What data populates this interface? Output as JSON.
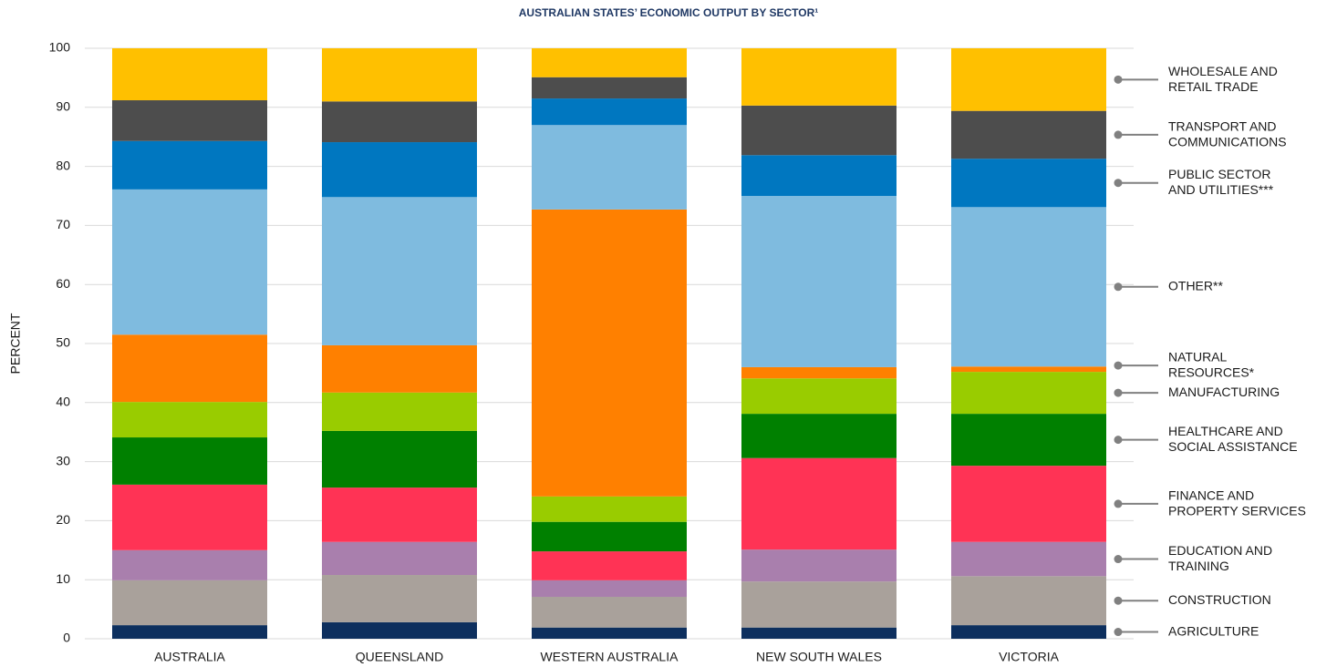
{
  "chart_data": {
    "type": "stacked_bar",
    "title": "AUSTRALIAN STATES’ ECONOMIC OUTPUT BY SECTOR¹",
    "y_label": "PERCENT",
    "categories": [
      "AUSTRALIA",
      "QUEENSLAND",
      "WESTERN AUSTRALIA",
      "NEW SOUTH WALES",
      "VICTORIA"
    ],
    "ylim": [
      0,
      100
    ],
    "yticks": [
      0,
      10,
      20,
      30,
      40,
      50,
      60,
      70,
      80,
      90,
      100
    ],
    "grid": true,
    "legend": "right",
    "series": [
      {
        "name": "AGRICULTURE",
        "color": "#0d2f5e",
        "values": [
          2.3,
          2.8,
          1.9,
          1.9,
          2.3
        ]
      },
      {
        "name": "CONSTRUCTION",
        "color": "#a9a19b",
        "values": [
          7.6,
          8.0,
          5.2,
          7.8,
          8.3
        ]
      },
      {
        "name": "EDUCATION AND\nTRAINING",
        "color": "#a97fad",
        "values": [
          5.1,
          5.6,
          2.8,
          5.4,
          5.8
        ]
      },
      {
        "name": "FINANCE AND\nPROPERTY SERVICES",
        "color": "#ff3355",
        "values": [
          11.1,
          9.2,
          4.9,
          15.5,
          12.9
        ]
      },
      {
        "name": "HEALTHCARE AND\nSOCIAL ASSISTANCE",
        "color": "#008000",
        "values": [
          8.0,
          9.6,
          5.0,
          7.5,
          8.8
        ]
      },
      {
        "name": "MANUFACTURING",
        "color": "#99cc00",
        "values": [
          6.0,
          6.5,
          4.3,
          6.0,
          7.1
        ]
      },
      {
        "name": "NATURAL\nRESOURCES*",
        "color": "#ff8000",
        "values": [
          11.4,
          8.0,
          48.6,
          1.9,
          0.9
        ]
      },
      {
        "name": "OTHER**",
        "color": "#7fbbdf",
        "values": [
          24.6,
          25.1,
          14.3,
          29.0,
          27.0
        ]
      },
      {
        "name": "PUBLIC SECTOR\nAND UTILITIES***",
        "color": "#0077c0",
        "values": [
          8.2,
          9.3,
          4.5,
          6.9,
          8.2
        ]
      },
      {
        "name": "TRANSPORT AND\nCOMMUNICATIONS",
        "color": "#4d4d4d",
        "values": [
          6.9,
          6.9,
          3.6,
          8.4,
          8.1
        ]
      },
      {
        "name": "WHOLESALE AND\nRETAIL TRADE",
        "color": "#ffc000",
        "values": [
          8.8,
          9.0,
          4.9,
          9.7,
          10.6
        ]
      }
    ]
  }
}
